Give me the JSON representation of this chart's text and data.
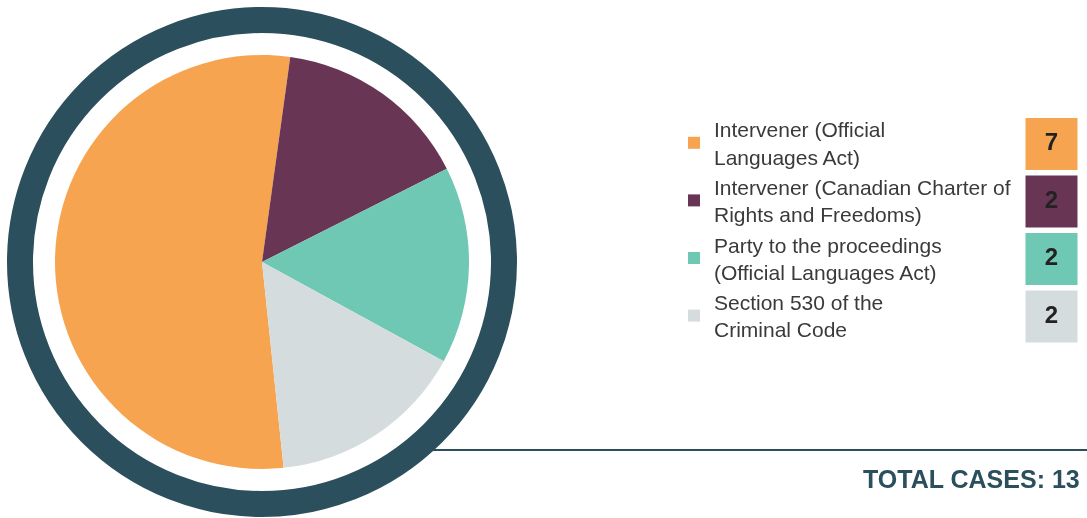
{
  "chart_data": {
    "type": "pie",
    "categories": [
      "Intervener (Official\nLanguages Act)",
      "Intervener (Canadian Charter of\nRights and Freedoms)",
      "Party to the proceedings\n(Official Languages Act)",
      "Section 530 of the\nCriminal Code"
    ],
    "values": [
      7,
      2,
      2,
      2
    ],
    "colors": [
      "#f7a451",
      "#693555",
      "#6fc8b3",
      "#d5dcdd"
    ],
    "data_labels": true,
    "legend": "right",
    "annotations": [
      "TOTAL CASES: 13"
    ]
  }
}
